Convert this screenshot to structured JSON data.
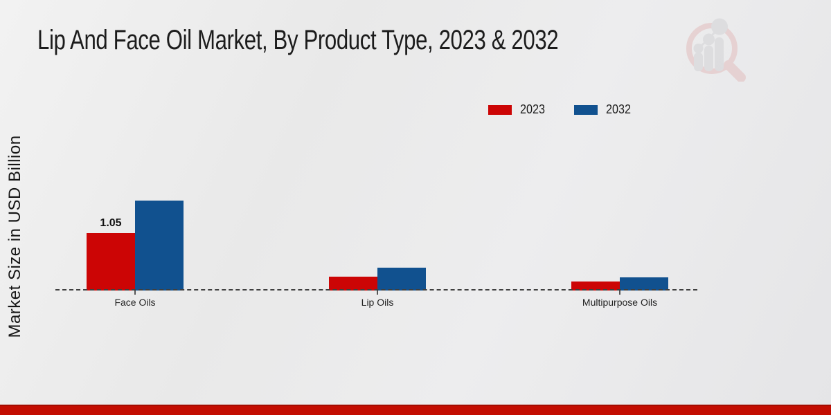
{
  "header": {
    "title": "Lip And Face Oil Market, By Product Type, 2023 & 2032"
  },
  "watermark_icon": "magnifying-glass-bar-chart-logo",
  "colors": {
    "series_2023": "#cc0505",
    "series_2032": "#11518f",
    "accent_strip": "#c30d01",
    "background": "#e9e9e9",
    "baseline_dash": "#3f3f3f"
  },
  "chart_data": {
    "type": "bar",
    "title": "Lip And Face Oil Market, By Product Type, 2023 & 2032",
    "xlabel": "",
    "ylabel": "Market Size in USD Billion",
    "categories": [
      "Face Oils",
      "Lip Oils",
      "Multipurpose Oils"
    ],
    "series": [
      {
        "name": "2023",
        "color": "#cc0505",
        "values": [
          1.05,
          0.25,
          0.16
        ]
      },
      {
        "name": "2032",
        "color": "#11518f",
        "values": [
          1.64,
          0.42,
          0.235
        ]
      }
    ],
    "value_labels": [
      {
        "series": "2023",
        "category": "Face Oils",
        "text": "1.05"
      }
    ],
    "ylim": [
      0,
      1.8
    ],
    "grid": "off",
    "axis_line": "dashed-baseline-only",
    "legend_position": "top-right"
  }
}
